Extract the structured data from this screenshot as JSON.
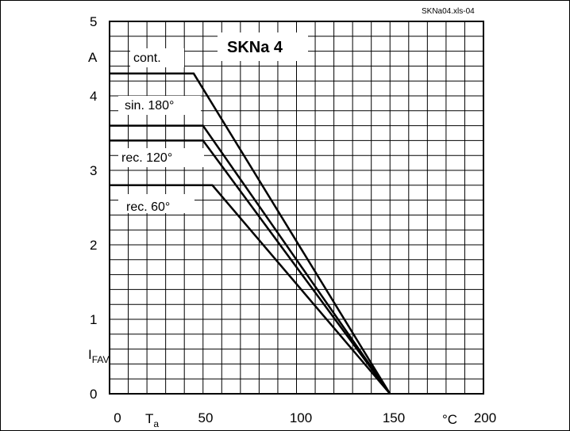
{
  "chart_data": {
    "type": "line",
    "title": "SKNa 4",
    "source_label": "SKNa04.xls-04",
    "ylabel": "I",
    "ylabel_sub": "FAV",
    "yunit": "A",
    "xlabel": "T",
    "xlabel_sub": "a",
    "xunit": "°C",
    "xlim": [
      0,
      200
    ],
    "ylim": [
      0,
      5
    ],
    "grid": true,
    "x_ticks": [
      "0",
      "50",
      "100",
      "150",
      "200"
    ],
    "y_ticks": [
      "0",
      "1",
      "2",
      "3",
      "4",
      "5"
    ],
    "series": [
      {
        "name": "cont.",
        "x": [
          0,
          45,
          150
        ],
        "y": [
          4.3,
          4.3,
          0
        ]
      },
      {
        "name": "sin. 180°",
        "x": [
          0,
          50,
          150
        ],
        "y": [
          3.6,
          3.6,
          0
        ]
      },
      {
        "name": "rec. 120°",
        "x": [
          0,
          50,
          150
        ],
        "y": [
          3.4,
          3.4,
          0
        ]
      },
      {
        "name": "rec. 60°",
        "x": [
          0,
          55,
          150
        ],
        "y": [
          2.8,
          2.8,
          0
        ]
      }
    ]
  }
}
